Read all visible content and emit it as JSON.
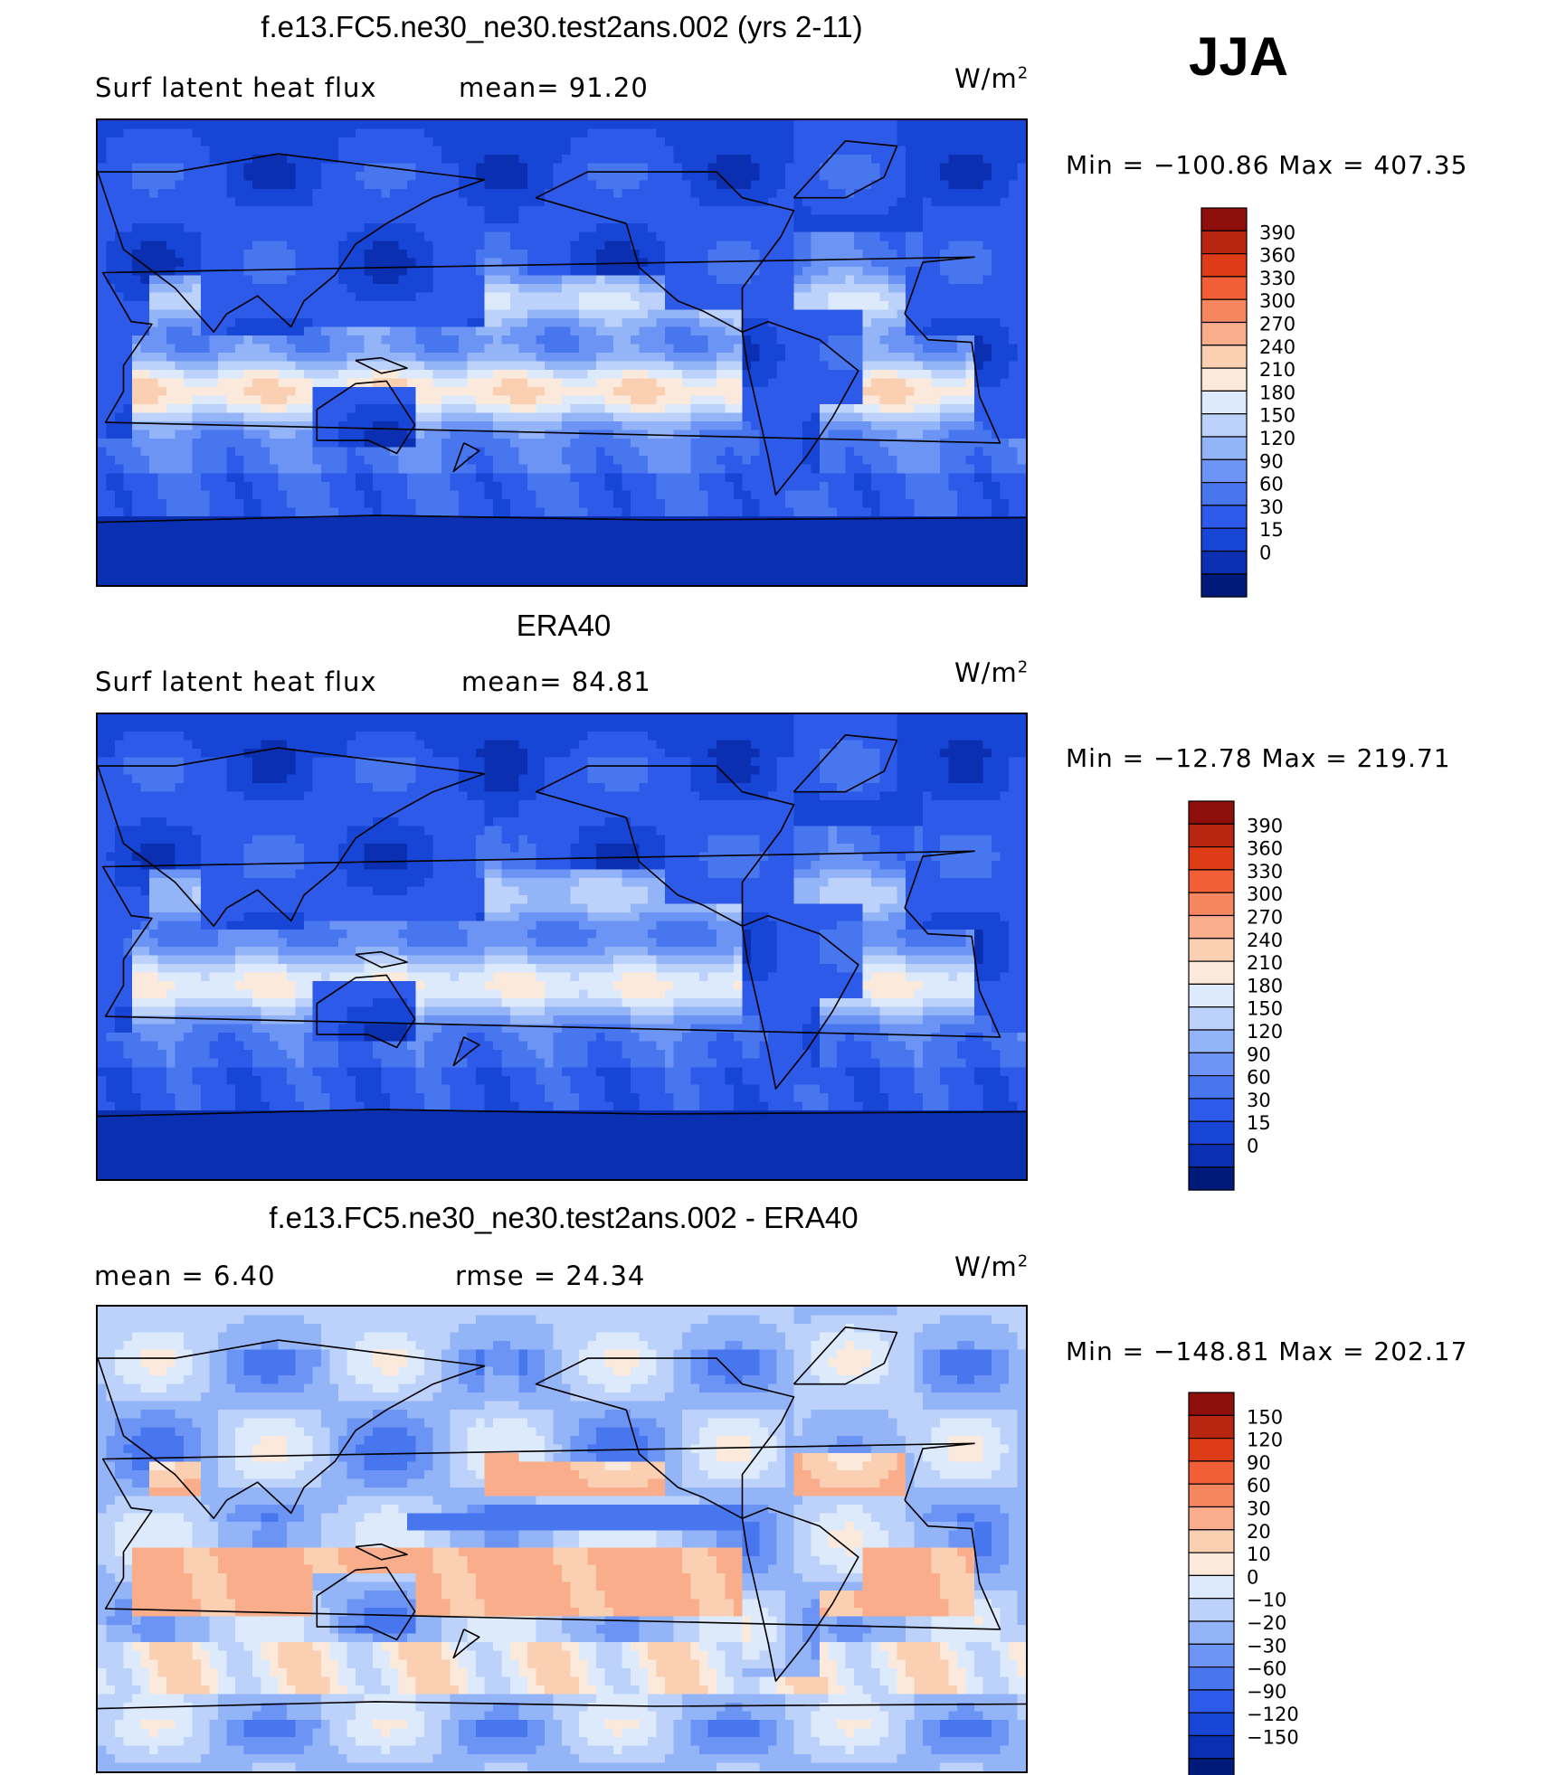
{
  "season": "JJA",
  "colors": {
    "sequential": [
      "#001a7a",
      "#0a2fb0",
      "#1745d6",
      "#2d5ae8",
      "#4876ef",
      "#6b94f5",
      "#94b4f8",
      "#bcd2fb",
      "#ddeafc",
      "#fbeadb",
      "#fbcfb2",
      "#f9ad8a",
      "#f6865e",
      "#f25f36",
      "#de3b17",
      "#b82612",
      "#8f0f0c"
    ],
    "diverging": [
      "#001a7a",
      "#0a2fb0",
      "#1745d6",
      "#2d5ae8",
      "#4876ef",
      "#6b94f5",
      "#94b4f8",
      "#bcd2fb",
      "#ddeafc",
      "#fbeadb",
      "#fbcfb2",
      "#f9ad8a",
      "#f6865e",
      "#f25f36",
      "#de3b17",
      "#b82612",
      "#8f0f0c"
    ]
  },
  "panels": [
    {
      "title": "f.e13.FC5.ne30_ne30.test2ans.002 (yrs 2-11)",
      "left_label": "Surf latent heat flux",
      "middle_label": "mean=  91.20",
      "units": "W/m",
      "units_sup": "2",
      "minmax": "Min = −100.86 Max = 407.35",
      "colorbar_labels": [
        "390",
        "360",
        "330",
        "300",
        "270",
        "240",
        "210",
        "180",
        "150",
        "120",
        "90",
        "60",
        "30",
        "15",
        "0"
      ]
    },
    {
      "title": "ERA40",
      "left_label": "Surf latent heat flux",
      "middle_label": "mean=  84.81",
      "units": "W/m",
      "units_sup": "2",
      "minmax": "Min = −12.78 Max = 219.71",
      "colorbar_labels": [
        "390",
        "360",
        "330",
        "300",
        "270",
        "240",
        "210",
        "180",
        "150",
        "120",
        "90",
        "60",
        "30",
        "15",
        "0"
      ]
    },
    {
      "title": "f.e13.FC5.ne30_ne30.test2ans.002 - ERA40",
      "left_label": "mean =   6.40",
      "middle_label": "rmse =  24.34",
      "units": "W/m",
      "units_sup": "2",
      "minmax": "Min = −148.81 Max = 202.17",
      "colorbar_labels": [
        "150",
        "120",
        "90",
        "60",
        "30",
        "20",
        "10",
        "0",
        "−10",
        "−20",
        "−30",
        "−60",
        "−90",
        "−120",
        "−150"
      ]
    }
  ],
  "chart_data": [
    {
      "type": "heatmap",
      "title": "f.e13.FC5.ne30_ne30.test2ans.002 (yrs 2-11)",
      "variable": "Surf latent heat flux",
      "units": "W/m2",
      "mean": 91.2,
      "min": -100.86,
      "max": 407.35,
      "contour_levels": [
        0,
        15,
        30,
        60,
        90,
        120,
        150,
        180,
        210,
        240,
        270,
        300,
        330,
        360,
        390
      ]
    },
    {
      "type": "heatmap",
      "title": "ERA40",
      "variable": "Surf latent heat flux",
      "units": "W/m2",
      "mean": 84.81,
      "min": -12.78,
      "max": 219.71,
      "contour_levels": [
        0,
        15,
        30,
        60,
        90,
        120,
        150,
        180,
        210,
        240,
        270,
        300,
        330,
        360,
        390
      ]
    },
    {
      "type": "heatmap",
      "title": "f.e13.FC5.ne30_ne30.test2ans.002 - ERA40",
      "units": "W/m2",
      "mean": 6.4,
      "rmse": 24.34,
      "min": -148.81,
      "max": 202.17,
      "contour_levels": [
        -150,
        -120,
        -90,
        -60,
        -30,
        -20,
        -10,
        0,
        10,
        20,
        30,
        60,
        90,
        120,
        150
      ]
    }
  ]
}
